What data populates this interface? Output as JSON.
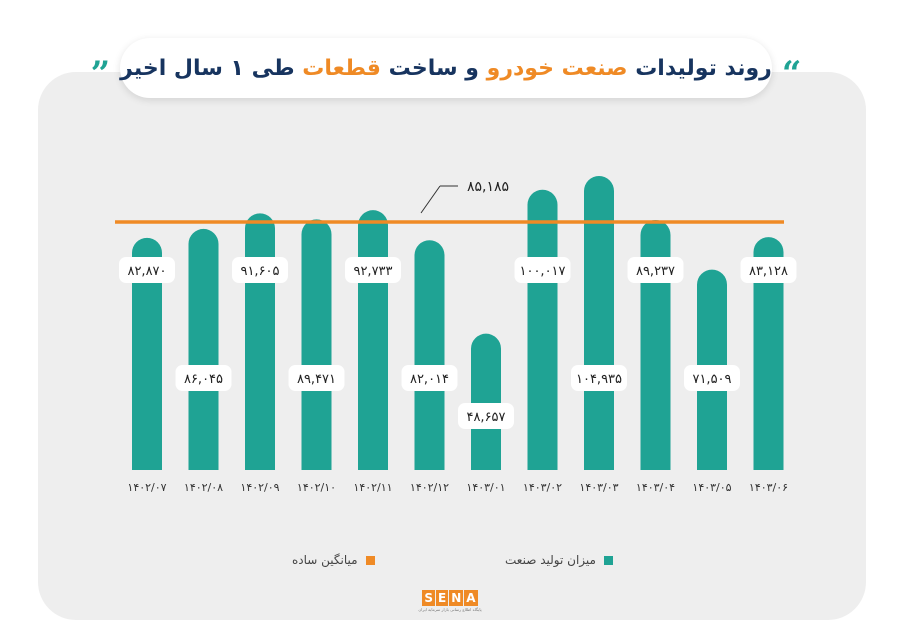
{
  "title_parts": [
    "روند تولیدات",
    "صنعت خودرو",
    "و ساخت",
    "قطعات",
    "طی ۱ سال اخیر"
  ],
  "quote_open": "“",
  "quote_close": "”",
  "colors": {
    "bar": "#1fa394",
    "line": "#ef8a25",
    "panel": "#eeeeee",
    "title_dark": "#17345f"
  },
  "legend": {
    "series_label": "میزان تولید صنعت",
    "average_label": "میانگین ساده"
  },
  "average_label_text": "۸۵,۱۸۵",
  "logo": {
    "text": "SENA",
    "subtitle": "پایگاه اطلاع رسانی بازار سرمایه ایران"
  },
  "chart_data": {
    "type": "bar",
    "categories": [
      "۱۴۰۲/۰۷",
      "۱۴۰۲/۰۸",
      "۱۴۰۲/۰۹",
      "۱۴۰۲/۱۰",
      "۱۴۰۲/۱۱",
      "۱۴۰۲/۱۲",
      "۱۴۰۳/۰۱",
      "۱۴۰۳/۰۲",
      "۱۴۰۳/۰۳",
      "۱۴۰۳/۰۴",
      "۱۴۰۳/۰۵",
      "۱۴۰۳/۰۶"
    ],
    "series": [
      {
        "name": "میزان تولید صنعت",
        "values": [
          82870,
          86045,
          91605,
          89471,
          92733,
          82014,
          48657,
          100017,
          104935,
          89237,
          71509,
          83128
        ],
        "value_labels": [
          "۸۲,۸۷۰",
          "۸۶,۰۴۵",
          "۹۱,۶۰۵",
          "۸۹,۴۷۱",
          "۹۲,۷۳۳",
          "۸۲,۰۱۴",
          "۴۸,۶۵۷",
          "۱۰۰,۰۱۷",
          "۱۰۴,۹۳۵",
          "۸۹,۲۳۷",
          "۷۱,۵۰۹",
          "۸۳,۱۲۸"
        ]
      }
    ],
    "average": {
      "name": "میانگین ساده",
      "value": 85185
    },
    "ylim": [
      0,
      110000
    ],
    "grid": false,
    "legend_position": "bottom"
  }
}
